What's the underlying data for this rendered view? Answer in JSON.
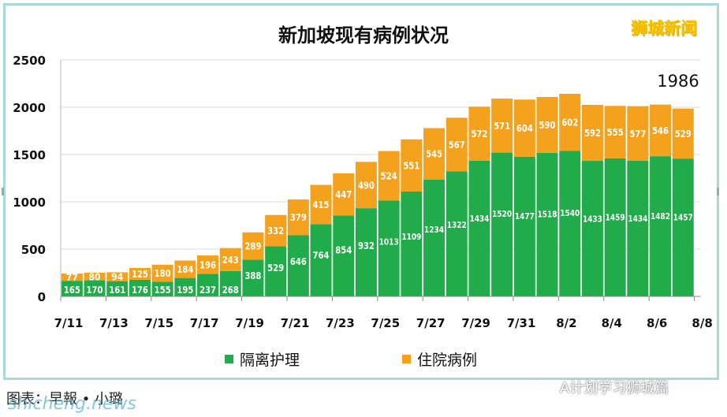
{
  "chart_data": {
    "type": "bar",
    "stacked": true,
    "title": "新加坡现有病例状况",
    "categories": [
      "7/11",
      "7/12",
      "7/13",
      "7/14",
      "7/15",
      "7/16",
      "7/17",
      "7/18",
      "7/19",
      "7/20",
      "7/21",
      "7/22",
      "7/23",
      "7/24",
      "7/25",
      "7/26",
      "7/27",
      "7/28",
      "7/29",
      "7/30",
      "7/31",
      "8/1",
      "8/2",
      "8/3",
      "8/4",
      "8/5",
      "8/6",
      "8/7"
    ],
    "x_tick_labels": [
      "7/11",
      "7/13",
      "7/15",
      "7/17",
      "7/19",
      "7/21",
      "7/23",
      "7/25",
      "7/27",
      "7/29",
      "7/31",
      "8/2",
      "8/4",
      "8/6",
      "8/8"
    ],
    "series": [
      {
        "name": "隔离护理",
        "color": "#22ab4a",
        "values": [
          165,
          170,
          161,
          176,
          155,
          195,
          237,
          268,
          388,
          529,
          646,
          764,
          854,
          932,
          1013,
          1109,
          1234,
          1322,
          1434,
          1520,
          1477,
          1518,
          1540,
          1433,
          1459,
          1434,
          1482,
          1457
        ]
      },
      {
        "name": "住院病例",
        "color": "#f4a21d",
        "values": [
          77,
          80,
          94,
          125,
          180,
          184,
          196,
          243,
          289,
          332,
          379,
          415,
          447,
          490,
          524,
          551,
          545,
          567,
          572,
          571,
          604,
          590,
          602,
          592,
          555,
          577,
          546,
          529
        ]
      }
    ],
    "ylim": [
      0,
      2500
    ],
    "yticks": [
      0,
      500,
      1000,
      1500,
      2000,
      2500
    ],
    "annotation": "1986",
    "grid": true,
    "legend_position": "bottom"
  },
  "brand": "狮城新闻",
  "caption": "图表：早報 • 小璐",
  "watermark": "shicheng.news",
  "wechat_label": "A计划学习狮城篇",
  "colors": {
    "green": "#22ab4a",
    "orange": "#f4a21d",
    "frame": "#a8d8d8",
    "brand": "#f5c400"
  }
}
